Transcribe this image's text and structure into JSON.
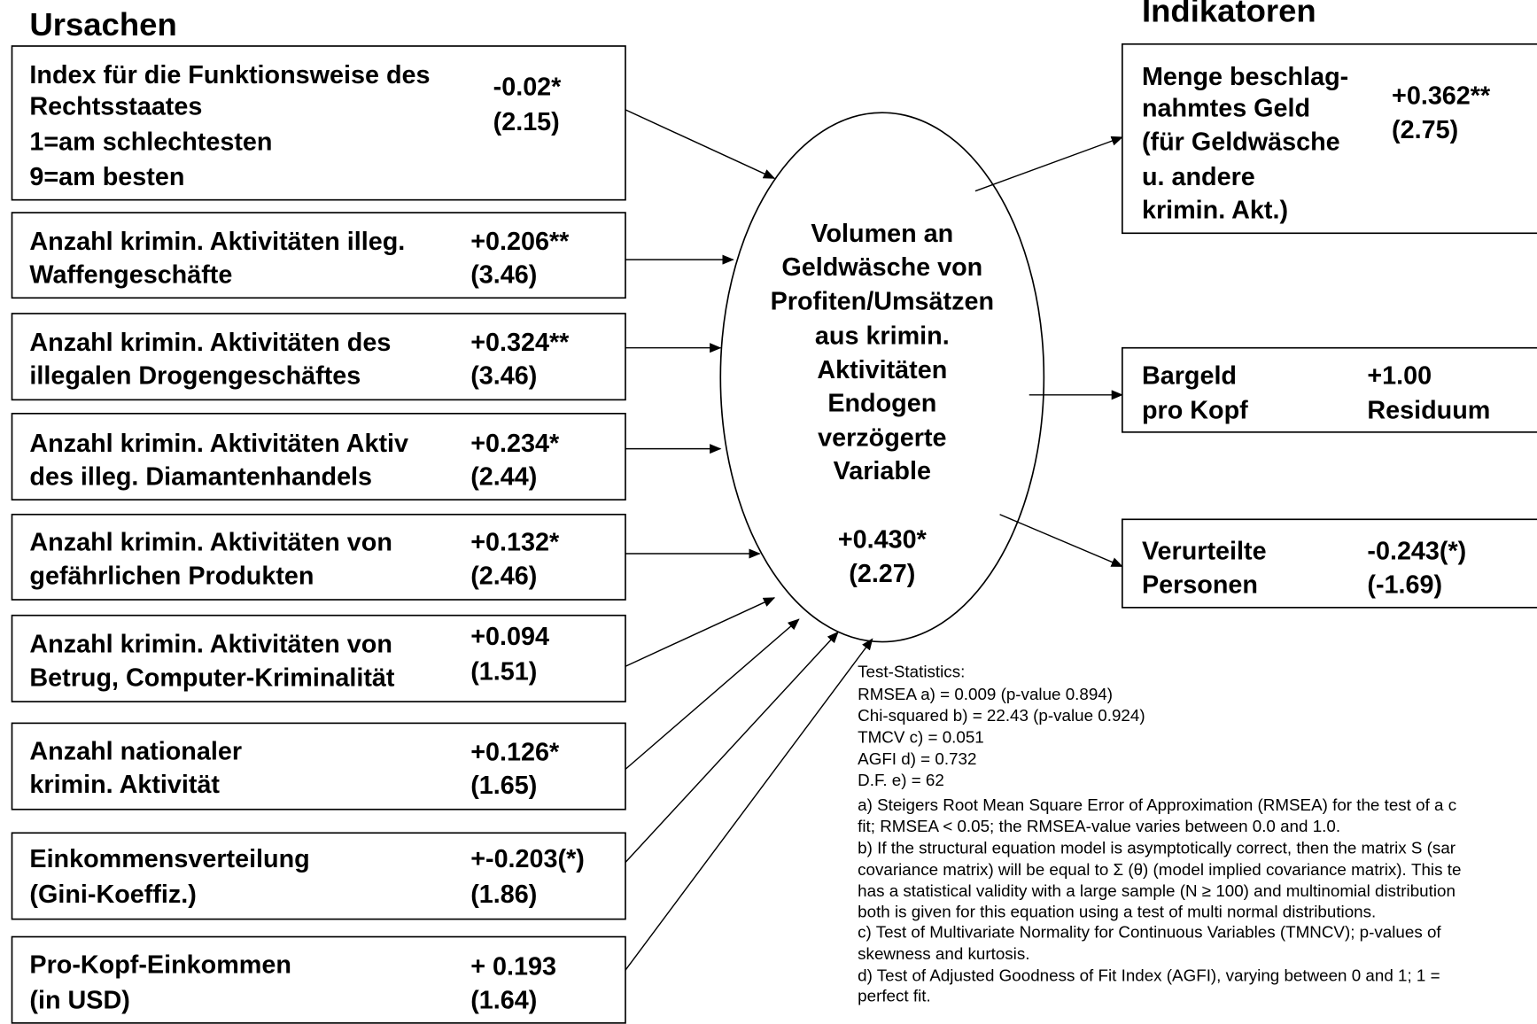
{
  "title_left": "Ursachen",
  "title_right": "Indikatoren",
  "causes": [
    {
      "lines": [
        "Index für die Funktionsweise des",
        "Rechtsstaates",
        "1=am schlechtesten",
        "9=am besten"
      ],
      "coef": "-0.02*",
      "t": "(2.15)"
    },
    {
      "lines": [
        "Anzahl krimin. Aktivitäten illeg.",
        "Waffengeschäfte"
      ],
      "coef": "+0.206**",
      "t": "(3.46)"
    },
    {
      "lines": [
        "Anzahl krimin. Aktivitäten des",
        "illegalen Drogengeschäftes"
      ],
      "coef": "+0.324**",
      "t": "(3.46)"
    },
    {
      "lines": [
        "Anzahl krimin. Aktivitäten Aktiv",
        "des illeg. Diamantenhandels"
      ],
      "coef": "+0.234*",
      "t": "(2.44)"
    },
    {
      "lines": [
        "Anzahl krimin. Aktivitäten von",
        "gefährlichen Produkten"
      ],
      "coef": "+0.132*",
      "t": "(2.46)"
    },
    {
      "lines": [
        "Anzahl krimin. Aktivitäten von",
        "Betrug, Computer-Kriminalität"
      ],
      "coef": "+0.094",
      "t": "(1.51)"
    },
    {
      "lines": [
        "Anzahl nationaler",
        "krimin. Aktivität"
      ],
      "coef": "+0.126*",
      "t": "(1.65)"
    },
    {
      "lines": [
        "Einkommensverteilung",
        "(Gini-Koeffiz.)"
      ],
      "coef": "+-0.203(*)",
      "t": "(1.86)"
    },
    {
      "lines": [
        "Pro-Kopf-Einkommen",
        "(in USD)"
      ],
      "coef": "+ 0.193",
      "t": "(1.64)"
    }
  ],
  "center": {
    "lines": [
      "Volumen an",
      "Geldwäsche von",
      "Profiten/Umsätzen",
      "aus krimin.",
      "Aktivitäten",
      "Endogen",
      "verzögerte",
      "Variable"
    ],
    "coef": "+0.430*",
    "t": "(2.27)"
  },
  "indicators": [
    {
      "lines": [
        "Menge beschlag-",
        "nahmtes Geld",
        "(für Geldwäsche",
        "u. andere",
        "krimin. Akt.)"
      ],
      "coef": "+0.362**",
      "t": "(2.75)"
    },
    {
      "lines": [
        "Bargeld",
        "pro Kopf"
      ],
      "coef": "+1.00",
      "t": "Residuum"
    },
    {
      "lines": [
        "Verurteilte",
        "Personen"
      ],
      "coef": "-0.243(*)",
      "t": "(-1.69)"
    }
  ],
  "stats": [
    "Test-Statistics:",
    "RMSEA a) = 0.009 (p-value 0.894)",
    "Chi-squared b) = 22.43 (p-value 0.924)",
    "TMCV c) = 0.051",
    "AGFI d) = 0.732",
    "D.F. e) = 62",
    "a) Steigers Root Mean Square Error of Approximation (RMSEA) for the test of a c",
    "fit; RMSEA < 0.05; the RMSEA-value varies between 0.0 and 1.0.",
    "b) If the structural equation model is asymptotically correct, then the matrix S (sar",
    "covariance matrix) will be equal to Σ (θ) (model implied covariance matrix). This te",
    "has a statistical validity with a large sample (N ≥ 100) and multinomial distribution",
    "both is given for this equation using a test of multi normal distributions.",
    "c) Test of Multivariate Normality for Continuous Variables (TMNCV); p-values of",
    "skewness and kurtosis.",
    "d) Test of Adjusted Goodness of Fit Index (AGFI), varying between 0 and 1; 1 =",
    "perfect fit."
  ]
}
